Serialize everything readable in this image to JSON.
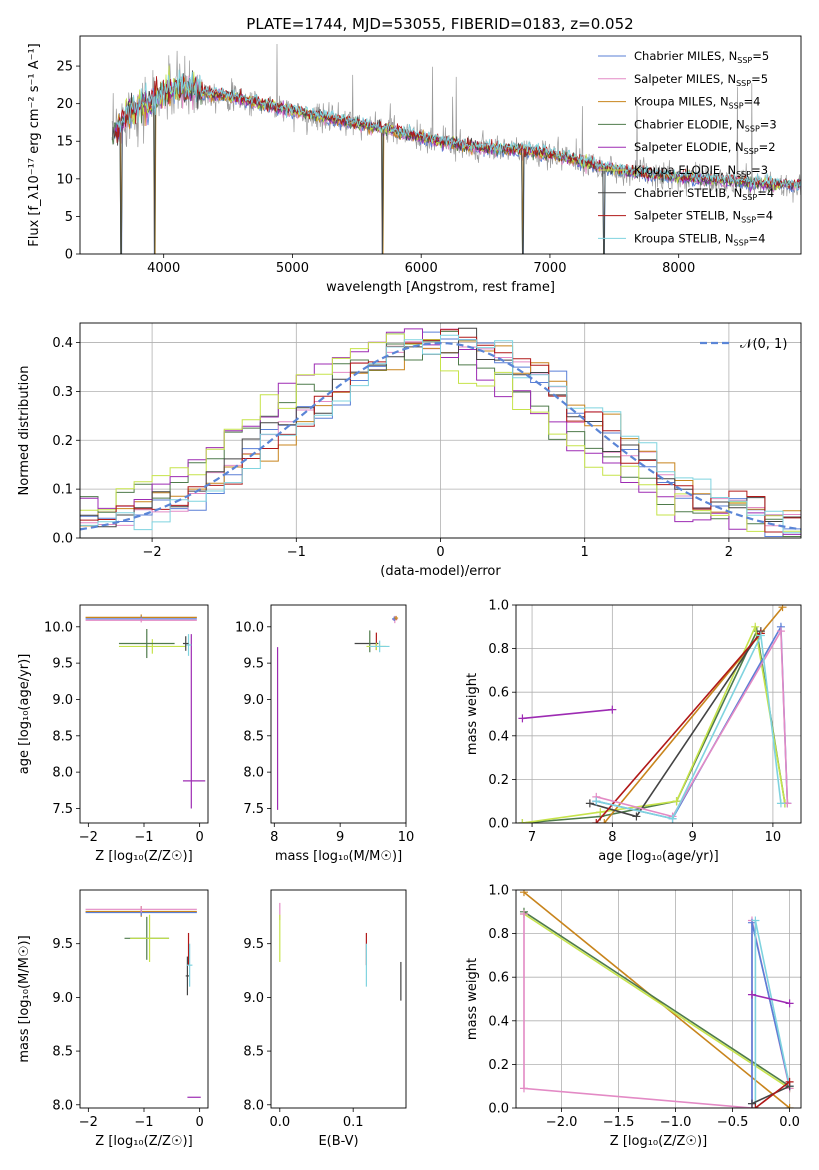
{
  "figure_title": "PLATE=1744, MJD=53055, FIBERID=0183, z=0.052",
  "models": [
    {
      "name": "Chabrier MILES",
      "nssp": "5",
      "color": "#5a7fd6"
    },
    {
      "name": "Salpeter MILES",
      "nssp": "5",
      "color": "#e38ac5"
    },
    {
      "name": "Kroupa MILES",
      "nssp": "4",
      "color": "#c8841c"
    },
    {
      "name": "Chabrier ELODIE",
      "nssp": "3",
      "color": "#4f7b4b"
    },
    {
      "name": "Salpeter ELODIE",
      "nssp": "2",
      "color": "#9d2bb3"
    },
    {
      "name": "Kroupa ELODIE",
      "nssp": "3",
      "color": "#c6e34a"
    },
    {
      "name": "Chabrier STELIB",
      "nssp": "4",
      "color": "#444444"
    },
    {
      "name": "Salpeter STELIB",
      "nssp": "4",
      "color": "#b01818"
    },
    {
      "name": "Kroupa STELIB",
      "nssp": "4",
      "color": "#7fd3df"
    }
  ],
  "chart_data": [
    {
      "id": "spectrum",
      "type": "line",
      "xlabel": "wavelength [Angstrom, rest frame]",
      "ylabel": "Flux [f_λ10⁻¹⁷ erg cm⁻² s⁻¹ A⁻¹]",
      "xlim": [
        3350,
        8950
      ],
      "ylim": [
        0,
        29
      ],
      "xticks": [
        4000,
        5000,
        6000,
        7000,
        8000
      ],
      "yticks": [
        0,
        5,
        10,
        15,
        20,
        25
      ],
      "data_color": "#9a9a9a",
      "continuum": {
        "x": [
          3600,
          3700,
          3800,
          3900,
          4000,
          4100,
          4200,
          4300,
          4400,
          4500,
          4600,
          4700,
          4800,
          4900,
          5000,
          5200,
          5400,
          5600,
          5800,
          6000,
          6200,
          6400,
          6600,
          6800,
          7000,
          7200,
          7400,
          7600,
          7800,
          8000,
          8200,
          8400,
          8600,
          8800
        ],
        "y": [
          15.5,
          18.5,
          19.5,
          20.0,
          21.5,
          22.0,
          21.8,
          21.5,
          21.2,
          21.0,
          20.6,
          20.2,
          19.8,
          19.4,
          19.0,
          18.3,
          17.7,
          17.0,
          16.3,
          15.5,
          14.8,
          14.2,
          14.0,
          13.8,
          13.3,
          12.5,
          11.6,
          11.0,
          10.5,
          10.2,
          9.9,
          9.7,
          9.4,
          9.2
        ]
      },
      "dips": [
        {
          "x": 3670,
          "y": 0
        },
        {
          "x": 3930,
          "y": 0
        },
        {
          "x": 5700,
          "y": 0
        },
        {
          "x": 6790,
          "y": 0
        },
        {
          "x": 7420,
          "y": 0
        }
      ],
      "legend_position": "top-right"
    },
    {
      "id": "residuals",
      "type": "step",
      "xlabel": "(data-model)/error",
      "ylabel": "Normed distribution",
      "xlim": [
        -2.5,
        2.5
      ],
      "ylim": [
        0,
        0.44
      ],
      "xticks": [
        -2,
        -1,
        0,
        1,
        2
      ],
      "yticks": [
        0.0,
        0.1,
        0.2,
        0.3,
        0.4
      ],
      "normal_curve": {
        "label": "𝒩(0, 1)",
        "color": "#5a85d6"
      },
      "grid": true,
      "legend_position": "top-right"
    },
    {
      "id": "age_vs_Z",
      "type": "errorbar",
      "xlabel": "Z [log₁₀(Z/Z☉)]",
      "ylabel": "age  [log₁₀(age/yr)]",
      "xlim": [
        -2.15,
        0.15
      ],
      "ylim": [
        7.3,
        10.3
      ],
      "xticks": [
        -2,
        -1,
        0
      ],
      "yticks": [
        7.5,
        8.0,
        8.5,
        9.0,
        9.5,
        10.0
      ],
      "points": [
        {
          "m": 2,
          "x": -1.05,
          "y": 10.13,
          "xerr": 1.0,
          "yerr": 0.04
        },
        {
          "m": 0,
          "x": -1.05,
          "y": 10.11,
          "xerr": 1.0,
          "yerr": 0.03
        },
        {
          "m": 1,
          "x": -1.05,
          "y": 10.09,
          "xerr": 1.0,
          "yerr": 0.03
        },
        {
          "m": 5,
          "x": -0.85,
          "y": 9.73,
          "xerr": 0.6,
          "yerr": 0.1
        },
        {
          "m": 3,
          "x": -0.95,
          "y": 9.77,
          "xerr": 0.5,
          "yerr": 0.2
        },
        {
          "m": 4,
          "x": -0.15,
          "y": 8.7,
          "xerr": 0.0,
          "yerr": 1.2
        },
        {
          "m": 4,
          "x": -0.1,
          "y": 7.88,
          "xerr": 0.2,
          "yerr": 0.0
        },
        {
          "m": 8,
          "x": -0.2,
          "y": 9.75,
          "xerr": 0.05,
          "yerr": 0.15
        },
        {
          "m": 6,
          "x": -0.25,
          "y": 9.77,
          "xerr": 0.05,
          "yerr": 0.1
        }
      ]
    },
    {
      "id": "age_vs_mass",
      "type": "errorbar",
      "xlabel": "mass [log₁₀(M/M☉)]",
      "ylabel": "",
      "xlim": [
        7.95,
        10.0
      ],
      "ylim": [
        7.3,
        10.3
      ],
      "xticks": [
        8,
        9,
        10
      ],
      "yticks": [
        7.5,
        8.0,
        8.5,
        9.0,
        9.5,
        10.0
      ],
      "points": [
        {
          "m": 4,
          "x": 8.05,
          "y": 8.6,
          "xerr": 0.0,
          "yerr": 1.12
        },
        {
          "m": 6,
          "x": 9.4,
          "y": 9.77,
          "xerr": 0.18,
          "yerr": 0.0
        },
        {
          "m": 3,
          "x": 9.45,
          "y": 9.8,
          "xerr": 0.0,
          "yerr": 0.15
        },
        {
          "m": 7,
          "x": 9.55,
          "y": 9.8,
          "xerr": 0.0,
          "yerr": 0.12
        },
        {
          "m": 5,
          "x": 9.55,
          "y": 9.73,
          "xerr": 0.15,
          "yerr": 0.05
        },
        {
          "m": 8,
          "x": 9.6,
          "y": 9.73,
          "xerr": 0.15,
          "yerr": 0.08
        },
        {
          "m": 1,
          "x": 9.83,
          "y": 10.1,
          "xerr": 0.04,
          "yerr": 0.05
        },
        {
          "m": 0,
          "x": 9.82,
          "y": 10.11,
          "xerr": 0.03,
          "yerr": 0.03
        },
        {
          "m": 2,
          "x": 9.85,
          "y": 10.12,
          "xerr": 0.03,
          "yerr": 0.03
        }
      ]
    },
    {
      "id": "mass_weight_vs_age",
      "type": "line",
      "xlabel": "age  [log₁₀(age/yr)]",
      "ylabel": "mass weight",
      "xlim": [
        6.8,
        10.35
      ],
      "ylim": [
        0,
        1
      ],
      "xticks": [
        7,
        8,
        9,
        10
      ],
      "yticks": [
        0.0,
        0.2,
        0.4,
        0.6,
        0.8,
        1.0
      ],
      "grid": true,
      "series": [
        {
          "m": 4,
          "x": [
            6.88,
            8.0
          ],
          "y": [
            0.48,
            0.52
          ]
        },
        {
          "m": 3,
          "x": [
            6.88,
            7.85,
            8.8,
            9.8,
            10.15
          ],
          "y": [
            0.0,
            0.03,
            0.1,
            0.88,
            0.09
          ]
        },
        {
          "m": 5,
          "x": [
            6.88,
            7.85,
            8.8,
            9.78,
            10.15
          ],
          "y": [
            0.0,
            0.05,
            0.1,
            0.9,
            0.09
          ]
        },
        {
          "m": 2,
          "x": [
            7.9,
            10.12
          ],
          "y": [
            0.0,
            0.99
          ]
        },
        {
          "m": 6,
          "x": [
            7.72,
            8.3,
            9.85
          ],
          "y": [
            0.09,
            0.03,
            0.88
          ]
        },
        {
          "m": 7,
          "x": [
            7.8,
            9.85
          ],
          "y": [
            0.0,
            0.87
          ]
        },
        {
          "m": 0,
          "x": [
            7.8,
            8.75,
            10.1,
            10.18
          ],
          "y": [
            0.1,
            0.02,
            0.9,
            0.09
          ]
        },
        {
          "m": 1,
          "x": [
            7.8,
            8.75,
            10.1,
            10.18
          ],
          "y": [
            0.12,
            0.03,
            0.88,
            0.09
          ]
        },
        {
          "m": 8,
          "x": [
            7.8,
            8.75,
            9.85,
            10.1
          ],
          "y": [
            0.1,
            0.02,
            0.86,
            0.09
          ]
        }
      ]
    },
    {
      "id": "mass_vs_Z",
      "type": "errorbar",
      "xlabel": "Z [log₁₀(Z/Z☉)]",
      "ylabel": "mass [log₁₀(M/M☉)]",
      "xlim": [
        -2.15,
        0.15
      ],
      "ylim": [
        7.97,
        10.0
      ],
      "xticks": [
        -2,
        -1,
        0
      ],
      "yticks": [
        8.0,
        8.5,
        9.0,
        9.5
      ],
      "points": [
        {
          "m": 2,
          "x": -1.05,
          "y": 9.8,
          "xerr": 1.0,
          "yerr": 0.05
        },
        {
          "m": 0,
          "x": -1.05,
          "y": 9.79,
          "xerr": 1.0,
          "yerr": 0.03
        },
        {
          "m": 1,
          "x": -1.05,
          "y": 9.82,
          "xerr": 1.0,
          "yerr": 0.03
        },
        {
          "m": 3,
          "x": -0.95,
          "y": 9.55,
          "xerr": 0.4,
          "yerr": 0.2
        },
        {
          "m": 5,
          "x": -0.9,
          "y": 9.55,
          "xerr": 0.35,
          "yerr": 0.22
        },
        {
          "m": 7,
          "x": -0.2,
          "y": 9.45,
          "xerr": 0.0,
          "yerr": 0.15
        },
        {
          "m": 6,
          "x": -0.22,
          "y": 9.2,
          "xerr": 0.03,
          "yerr": 0.18
        },
        {
          "m": 8,
          "x": -0.18,
          "y": 9.3,
          "xerr": 0.05,
          "yerr": 0.2
        },
        {
          "m": 4,
          "x": -0.1,
          "y": 8.07,
          "xerr": 0.12,
          "yerr": 0.0
        }
      ]
    },
    {
      "id": "mass_vs_ebv",
      "type": "errorbar",
      "xlabel": "E(B-V)",
      "ylabel": "",
      "xlim": [
        -0.012,
        0.172
      ],
      "ylim": [
        7.97,
        10.0
      ],
      "xticks": [
        0.0,
        0.1
      ],
      "yticks": [
        8.0,
        8.5,
        9.0,
        9.5
      ],
      "points": [
        {
          "m": 1,
          "x": 0.0,
          "y": 9.8,
          "xerr": 0.0,
          "yerr": 0.08
        },
        {
          "m": 5,
          "x": 0.0,
          "y": 9.55,
          "xerr": 0.0,
          "yerr": 0.22
        },
        {
          "m": 7,
          "x": 0.118,
          "y": 9.45,
          "xerr": 0.0,
          "yerr": 0.15
        },
        {
          "m": 8,
          "x": 0.118,
          "y": 9.3,
          "xerr": 0.0,
          "yerr": 0.2
        },
        {
          "m": 6,
          "x": 0.165,
          "y": 9.15,
          "xerr": 0.0,
          "yerr": 0.18
        }
      ]
    },
    {
      "id": "mass_weight_vs_Z",
      "type": "line",
      "xlabel": "Z [log₁₀(Z/Z☉)]",
      "ylabel": "mass weight",
      "xlim": [
        -2.4,
        0.1
      ],
      "ylim": [
        0,
        1
      ],
      "xticks": [
        -2.0,
        -1.5,
        -1.0,
        -0.5,
        0.0
      ],
      "yticks": [
        0.0,
        0.2,
        0.4,
        0.6,
        0.8,
        1.0
      ],
      "grid": true,
      "series": [
        {
          "m": 2,
          "x": [
            -2.33,
            0.0
          ],
          "y": [
            0.99,
            0.0
          ]
        },
        {
          "m": 3,
          "x": [
            -2.33,
            0.0
          ],
          "y": [
            0.9,
            0.1
          ]
        },
        {
          "m": 5,
          "x": [
            -2.33,
            0.0
          ],
          "y": [
            0.89,
            0.09
          ]
        },
        {
          "m": 1,
          "x": [
            -2.33,
            -2.33,
            -0.33,
            -0.33,
            0.0
          ],
          "y": [
            0.89,
            0.09,
            0.0,
            0.86,
            0.09
          ]
        },
        {
          "m": 0,
          "x": [
            -0.33,
            -0.33,
            0.0
          ],
          "y": [
            0.02,
            0.85,
            0.1
          ]
        },
        {
          "m": 8,
          "x": [
            -0.3,
            -0.3,
            0.0
          ],
          "y": [
            0.0,
            0.86,
            0.1
          ]
        },
        {
          "m": 4,
          "x": [
            -0.33,
            0.0
          ],
          "y": [
            0.52,
            0.48
          ]
        },
        {
          "m": 6,
          "x": [
            -0.33,
            0.0
          ],
          "y": [
            0.02,
            0.1
          ]
        },
        {
          "m": 7,
          "x": [
            -0.3,
            0.0
          ],
          "y": [
            0.0,
            0.12
          ]
        }
      ]
    }
  ]
}
